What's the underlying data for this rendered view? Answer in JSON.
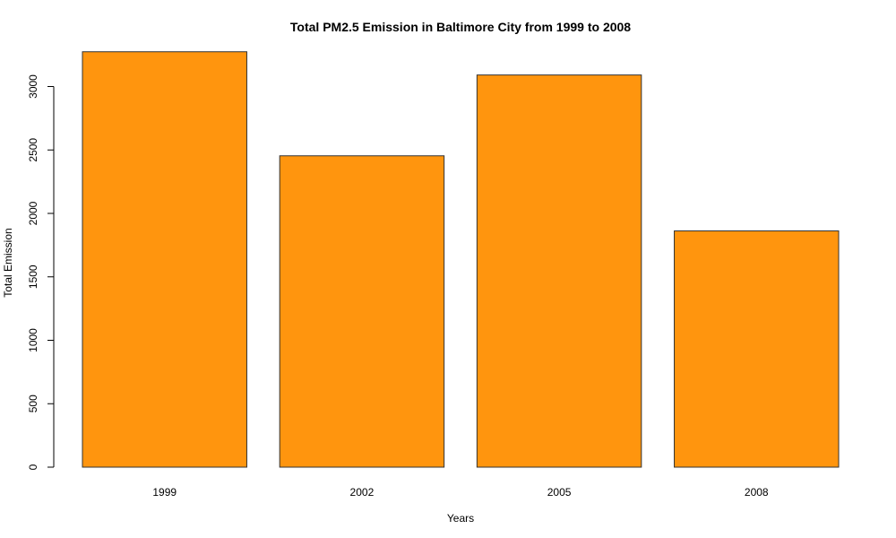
{
  "chart_data": {
    "type": "bar",
    "title": "Total PM2.5 Emission in Baltimore City from 1999 to 2008",
    "xlabel": "Years",
    "ylabel": "Total Emission",
    "categories": [
      "1999",
      "2002",
      "2005",
      "2008"
    ],
    "values": [
      3274,
      2454,
      3091,
      1862
    ],
    "ylim": [
      0,
      3300
    ],
    "yticks": [
      0,
      500,
      1000,
      1500,
      2000,
      2500,
      3000
    ],
    "bar_color": "#FF950E",
    "bar_border_color": "#333333",
    "grid": false,
    "legend": "none"
  }
}
